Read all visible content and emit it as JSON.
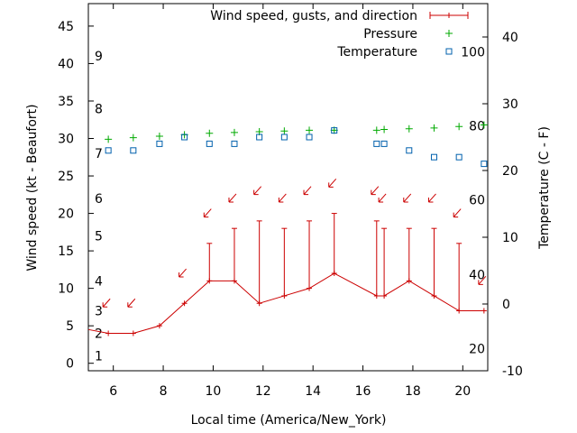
{
  "chart_data": {
    "type": "line",
    "xlabel": "Local time (America/New_York)",
    "ylabel": "Wind speed (kt - Beaufort)",
    "y2label": "Temperature (C - F)",
    "xlim": [
      5,
      21
    ],
    "ylim": [
      -1,
      48
    ],
    "y2lim": [
      -10,
      45
    ],
    "x_ticks": [
      6,
      8,
      10,
      12,
      14,
      16,
      18,
      20
    ],
    "y_ticks": [
      0,
      5,
      10,
      15,
      20,
      25,
      30,
      35,
      40,
      45
    ],
    "y2_ticks": [
      -10,
      0,
      10,
      20,
      30,
      40
    ],
    "beaufort_ticks": [
      {
        "label": "1",
        "at": 1.0
      },
      {
        "label": "2",
        "at": 4.0
      },
      {
        "label": "3",
        "at": 7.0
      },
      {
        "label": "4",
        "at": 11.0
      },
      {
        "label": "5",
        "at": 17.0
      },
      {
        "label": "6",
        "at": 22.0
      },
      {
        "label": "7",
        "at": 28.0
      },
      {
        "label": "8",
        "at": 34.0
      },
      {
        "label": "9",
        "at": 41.0
      }
    ],
    "fahrenheit_ticks": [
      {
        "label": "20",
        "at": -6.7
      },
      {
        "label": "40",
        "at": 4.4
      },
      {
        "label": "60",
        "at": 15.6
      },
      {
        "label": "80",
        "at": 26.7
      },
      {
        "label": "100",
        "at": 37.8
      }
    ],
    "legend_position": "top-right",
    "colors": {
      "wind": "#cc0000",
      "pressure": "#00aa00",
      "temperature": "#0060ad"
    },
    "series": [
      {
        "name": "Wind speed, gusts, and direction",
        "x": [
          4.8,
          5.8,
          6.8,
          7.85,
          8.85,
          9.85,
          10.85,
          11.85,
          12.85,
          13.85,
          14.85,
          16.55,
          16.85,
          17.85,
          18.85,
          19.85,
          20.85
        ],
        "y": [
          4.5,
          4,
          4,
          5,
          8,
          11,
          11,
          8,
          9,
          10,
          12,
          9,
          9,
          11,
          9,
          7,
          7
        ],
        "gusts": [
          null,
          null,
          null,
          null,
          null,
          16,
          18,
          19,
          18,
          19,
          20,
          19,
          18,
          18,
          18,
          16,
          null
        ],
        "direction_arrows_x": [
          5.8,
          6.8,
          8.85,
          9.85,
          10.85,
          11.85,
          12.85,
          13.85,
          14.85,
          16.55,
          16.85,
          17.85,
          18.85,
          19.85,
          20.85
        ]
      },
      {
        "name": "Pressure",
        "x": [
          5.8,
          6.8,
          7.85,
          8.85,
          9.85,
          10.85,
          11.85,
          12.85,
          13.85,
          14.85,
          16.55,
          16.85,
          17.85,
          18.85,
          19.85,
          20.85
        ],
        "y": [
          29.9,
          30.1,
          30.3,
          30.5,
          30.7,
          30.8,
          30.9,
          31.0,
          31.1,
          31.1,
          31.1,
          31.2,
          31.3,
          31.4,
          31.6,
          31.8
        ]
      },
      {
        "name": "Temperature",
        "x": [
          5.8,
          6.8,
          7.85,
          8.85,
          9.85,
          10.85,
          11.85,
          12.85,
          13.85,
          14.85,
          16.55,
          16.85,
          17.85,
          18.85,
          19.85,
          20.85
        ],
        "y": [
          23,
          23,
          24,
          25,
          24,
          24,
          25,
          25,
          25,
          26,
          24,
          24,
          23,
          22,
          22,
          21
        ]
      }
    ]
  }
}
